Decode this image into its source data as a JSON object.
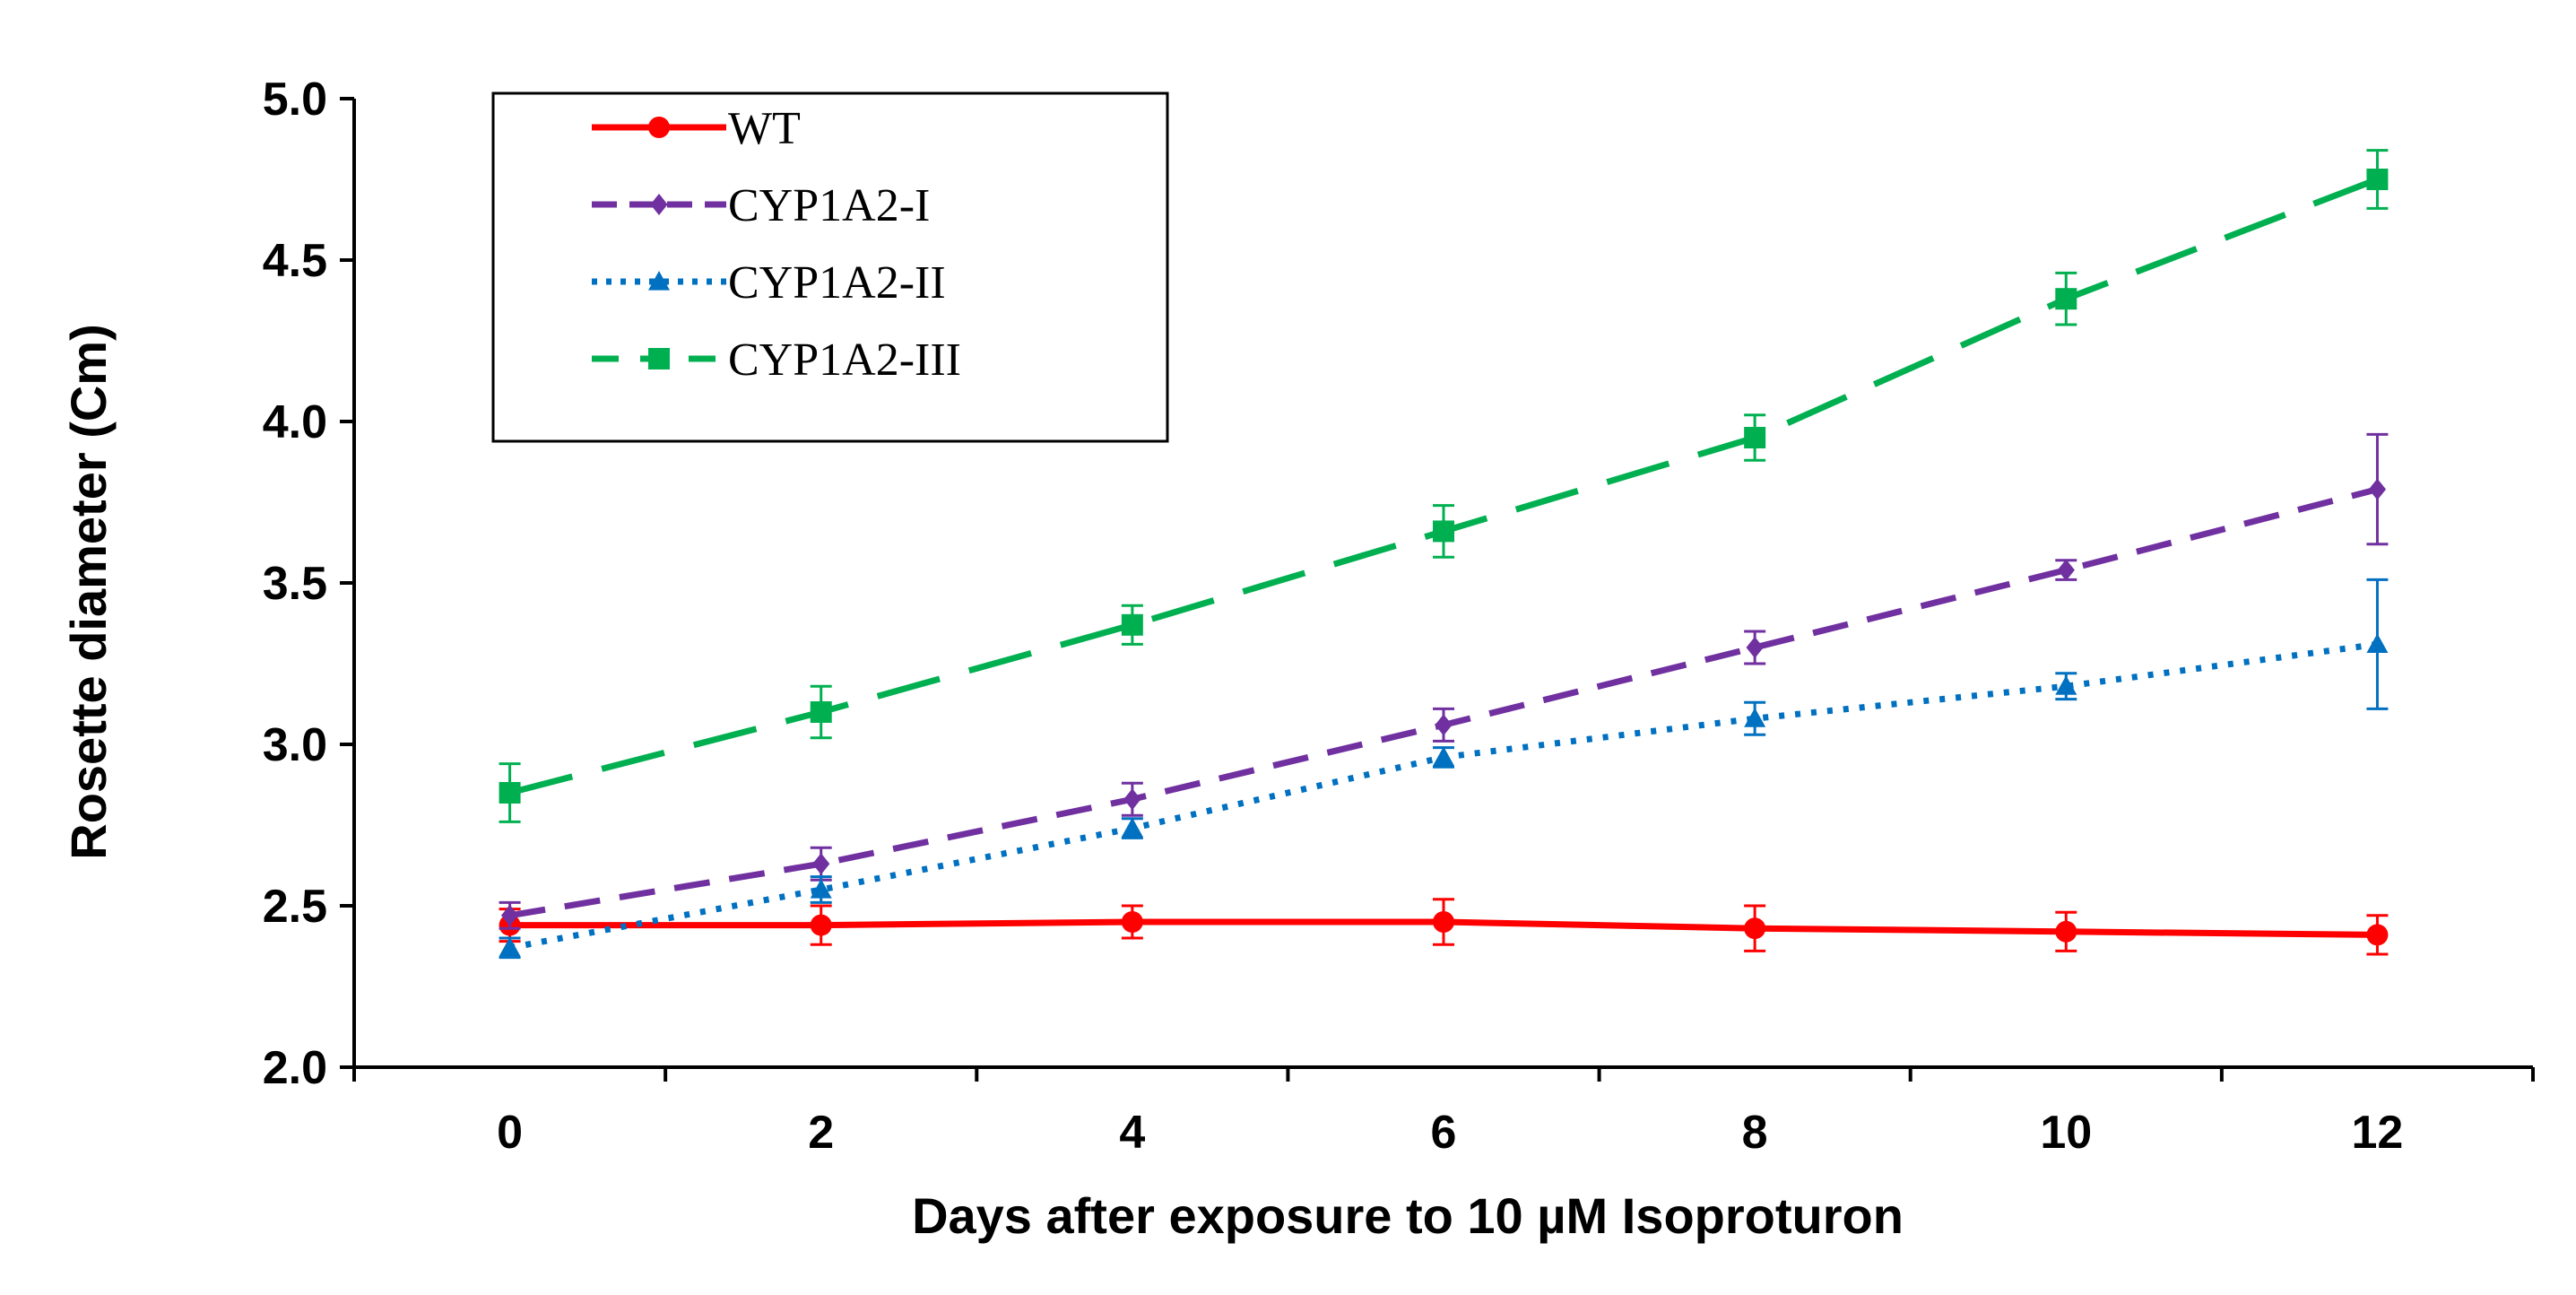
{
  "chart_data": {
    "type": "line",
    "title": "",
    "xlabel": "Days after exposure to 10 µM Isoproturon",
    "ylabel": "Rosette diameter (Cm)",
    "xlim": [
      -1,
      13
    ],
    "ylim": [
      2.0,
      5.0
    ],
    "x_ticks": [
      0,
      2,
      4,
      6,
      8,
      10,
      12
    ],
    "x_tick_labels": [
      "0",
      "2",
      "4",
      "6",
      "8",
      "10",
      "12"
    ],
    "y_ticks": [
      2.0,
      2.5,
      3.0,
      3.5,
      4.0,
      4.5,
      5.0
    ],
    "y_tick_labels": [
      "2.0",
      "2.5",
      "3.0",
      "3.5",
      "4.0",
      "4.5",
      "5.0"
    ],
    "grid": false,
    "legend_position": "top-left",
    "x": [
      0,
      2,
      4,
      6,
      8,
      10,
      12
    ],
    "series": [
      {
        "name": "WT",
        "color": "#ff0000",
        "line_style": "solid",
        "marker": "circle",
        "values": [
          2.44,
          2.44,
          2.45,
          2.45,
          2.43,
          2.42,
          2.41
        ],
        "errors": [
          0.05,
          0.06,
          0.05,
          0.07,
          0.07,
          0.06,
          0.06
        ]
      },
      {
        "name": "CYP1A2-I",
        "color": "#7030a0",
        "line_style": "dashed",
        "marker": "diamond",
        "values": [
          2.47,
          2.63,
          2.83,
          3.06,
          3.3,
          3.54,
          3.79
        ],
        "errors": [
          0.04,
          0.05,
          0.05,
          0.05,
          0.05,
          0.03,
          0.17
        ]
      },
      {
        "name": "CYP1A2-II",
        "color": "#0070c0",
        "line_style": "dotted",
        "marker": "triangle",
        "values": [
          2.37,
          2.55,
          2.74,
          2.96,
          3.08,
          3.18,
          3.31
        ],
        "errors": [
          0.03,
          0.04,
          0.03,
          0.03,
          0.05,
          0.04,
          0.2
        ]
      },
      {
        "name": "CYP1A2-III",
        "color": "#00b050",
        "line_style": "long-dash",
        "marker": "square",
        "values": [
          2.85,
          3.1,
          3.37,
          3.66,
          3.95,
          4.38,
          4.75
        ],
        "errors": [
          0.09,
          0.08,
          0.06,
          0.08,
          0.07,
          0.08,
          0.09
        ]
      }
    ]
  }
}
